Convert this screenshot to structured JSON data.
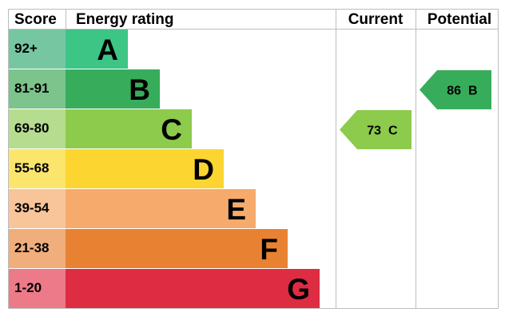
{
  "header": {
    "score": "Score",
    "energy_rating": "Energy rating",
    "current": "Current",
    "potential": "Potential"
  },
  "chart_data": {
    "type": "bar",
    "categories": [
      "A",
      "B",
      "C",
      "D",
      "E",
      "F",
      "G"
    ],
    "score_ranges": [
      "92+",
      "81-91",
      "69-80",
      "55-68",
      "39-54",
      "21-38",
      "1-20"
    ],
    "values": [
      1,
      2,
      3,
      4,
      5,
      6,
      7
    ],
    "band_colors": [
      "#3cc585",
      "#37ad5b",
      "#8ccb4b",
      "#fcd530",
      "#f6ab6c",
      "#e88232",
      "#de2c42"
    ],
    "score_colors": [
      "#76c6a2",
      "#7cc38c",
      "#b5dc8f",
      "#fce56d",
      "#f8c59b",
      "#efae7c",
      "#ec7a89"
    ],
    "current": {
      "value": 73,
      "band": "C",
      "color": "#8ccb4b"
    },
    "potential": {
      "value": 86,
      "band": "B",
      "color": "#37ad5b"
    }
  }
}
